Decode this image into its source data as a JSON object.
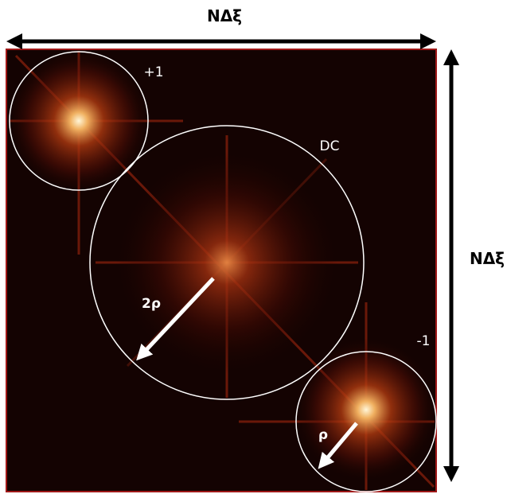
{
  "dimension_labels": {
    "top": "NΔξ",
    "right": "NΔξ"
  },
  "orders": {
    "plus_one": "+1",
    "dc": "DC",
    "minus_one": "-1"
  },
  "radii": {
    "dc": "2ρ",
    "side": "ρ"
  }
}
